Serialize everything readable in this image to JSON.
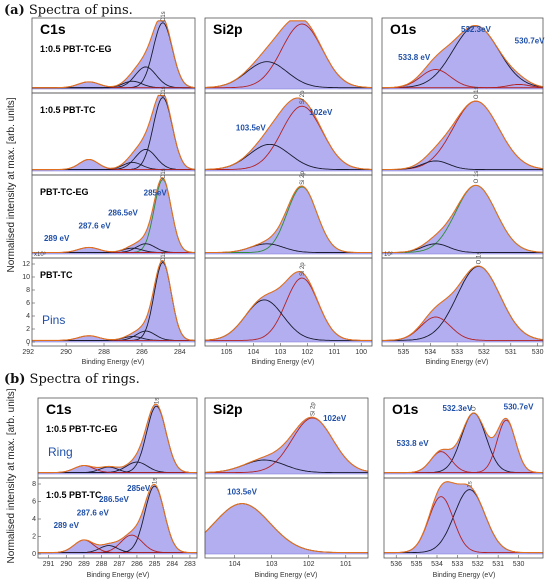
{
  "captions": {
    "a_letter": "(a)",
    "a_text": " Spectra of pins.",
    "b_letter": "(b)",
    "b_text": " Spectra of rings."
  },
  "ylabel": "Normalised intensity at max. [arb. units]",
  "xlabel": "Binding Energy (eV)",
  "pins_label": "Pins",
  "ring_label": "Ring",
  "scale_markers": {
    "c1s": "x10³",
    "o1s": "10²"
  },
  "colors": {
    "fill": "#b3aef0",
    "fill_stroke": "#7a74d6",
    "envelope": "#e0701e",
    "component_dark": "#1a1a2e",
    "component_red": "#b22222",
    "component_green": "#2e8b3a",
    "label_blue": "#1f4fa8"
  },
  "chart_data": [
    {
      "id": "pins-c1s-1",
      "type": "area",
      "panel_title": "C1s",
      "sample": "1:0.5 PBT-TC-EG",
      "peak_marker": "C1s",
      "xlim": [
        291.8,
        283.2
      ],
      "reversed_x": true,
      "components": [
        {
          "center": 284.9,
          "amp": 1.0,
          "width": 0.5,
          "color": "dark"
        },
        {
          "center": 285.8,
          "amp": 0.32,
          "width": 0.55,
          "color": "dark"
        },
        {
          "center": 286.5,
          "amp": 0.1,
          "width": 0.5,
          "color": "dark"
        },
        {
          "center": 288.8,
          "amp": 0.09,
          "width": 0.55,
          "color": "red"
        }
      ],
      "peak_labels": []
    },
    {
      "id": "pins-si2p-1",
      "type": "area",
      "panel_title": "Si2p",
      "xlim": [
        105.8,
        99.6
      ],
      "reversed_x": true,
      "components": [
        {
          "center": 102.2,
          "amp": 0.98,
          "width": 0.75,
          "color": "red"
        },
        {
          "center": 103.5,
          "amp": 0.4,
          "width": 0.75,
          "color": "dark"
        }
      ],
      "peak_labels": []
    },
    {
      "id": "pins-o1s-1",
      "type": "area",
      "panel_title": "O1s",
      "xlim": [
        535.8,
        529.8
      ],
      "reversed_x": true,
      "components": [
        {
          "center": 532.3,
          "amp": 0.95,
          "width": 0.85,
          "color": "dark"
        },
        {
          "center": 533.8,
          "amp": 0.28,
          "width": 0.55,
          "color": "red"
        },
        {
          "center": 530.7,
          "amp": 0.05,
          "width": 0.4,
          "color": "red"
        }
      ],
      "peak_labels": [
        {
          "text": "532.3eV",
          "x": 532.3,
          "y": 0.88
        },
        {
          "text": "533.8 eV",
          "x": 534.6,
          "y": 0.45
        },
        {
          "text": "530.7eV",
          "x": 530.3,
          "y": 0.7
        }
      ]
    },
    {
      "id": "pins-c1s-2",
      "type": "area",
      "sample": "1:0.5 PBT-TC",
      "peak_marker": "C1s",
      "xlim": [
        291.8,
        283.2
      ],
      "reversed_x": true,
      "components": [
        {
          "center": 284.9,
          "amp": 1.0,
          "width": 0.5,
          "color": "dark"
        },
        {
          "center": 285.8,
          "amp": 0.28,
          "width": 0.55,
          "color": "dark"
        },
        {
          "center": 286.5,
          "amp": 0.1,
          "width": 0.5,
          "color": "dark"
        },
        {
          "center": 288.8,
          "amp": 0.14,
          "width": 0.5,
          "color": "red"
        }
      ],
      "peak_labels": []
    },
    {
      "id": "pins-si2p-2",
      "type": "area",
      "peak_marker": "Si 2p",
      "xlim": [
        105.8,
        99.6
      ],
      "reversed_x": true,
      "components": [
        {
          "center": 102.2,
          "amp": 0.88,
          "width": 0.75,
          "color": "red"
        },
        {
          "center": 103.4,
          "amp": 0.35,
          "width": 0.75,
          "color": "dark"
        }
      ],
      "peak_labels": [
        {
          "text": "103.5eV",
          "x": 104.1,
          "y": 0.56
        },
        {
          "text": "102eV",
          "x": 101.5,
          "y": 0.78
        }
      ]
    },
    {
      "id": "pins-o1s-2",
      "type": "area",
      "peak_marker": "O 1s",
      "xlim": [
        535.8,
        529.8
      ],
      "reversed_x": true,
      "components": [
        {
          "center": 532.3,
          "amp": 0.95,
          "width": 0.85,
          "color": "red"
        },
        {
          "center": 533.8,
          "amp": 0.12,
          "width": 0.5,
          "color": "dark"
        }
      ],
      "peak_labels": []
    },
    {
      "id": "pins-c1s-3",
      "type": "area",
      "sample": "PBT-TC-EG",
      "peak_marker": "C1s",
      "scale_marker": "c1s",
      "xlim": [
        291.8,
        283.2
      ],
      "reversed_x": true,
      "components": [
        {
          "center": 284.9,
          "amp": 1.0,
          "width": 0.45,
          "color": "green"
        },
        {
          "center": 285.8,
          "amp": 0.12,
          "width": 0.5,
          "color": "dark"
        },
        {
          "center": 286.5,
          "amp": 0.06,
          "width": 0.5,
          "color": "dark"
        },
        {
          "center": 288.8,
          "amp": 0.07,
          "width": 0.55,
          "color": "red"
        }
      ],
      "peak_labels": [
        {
          "text": "285eV",
          "x": 285.3,
          "y": 0.8
        },
        {
          "text": "286.5eV",
          "x": 287.0,
          "y": 0.53
        },
        {
          "text": "287.6 eV",
          "x": 288.5,
          "y": 0.35
        },
        {
          "text": "289 eV",
          "x": 290.5,
          "y": 0.18
        }
      ]
    },
    {
      "id": "pins-si2p-3",
      "type": "area",
      "peak_marker": "Si 2p",
      "xlim": [
        105.8,
        99.6
      ],
      "reversed_x": true,
      "components": [
        {
          "center": 102.2,
          "amp": 0.9,
          "width": 0.55,
          "color": "green"
        },
        {
          "center": 103.5,
          "amp": 0.12,
          "width": 0.6,
          "color": "dark"
        }
      ],
      "peak_labels": []
    },
    {
      "id": "pins-o1s-3",
      "type": "area",
      "peak_marker": "O 1s",
      "scale_marker": "o1s",
      "xlim": [
        535.8,
        529.8
      ],
      "reversed_x": true,
      "components": [
        {
          "center": 532.3,
          "amp": 0.92,
          "width": 0.75,
          "color": "green"
        },
        {
          "center": 533.8,
          "amp": 0.12,
          "width": 0.5,
          "color": "dark"
        }
      ],
      "peak_labels": []
    },
    {
      "id": "pins-c1s-4",
      "type": "area",
      "sample": "PBT-TC",
      "side_label": "pins",
      "peak_marker": "C1s",
      "xlim": [
        291.8,
        283.2
      ],
      "reversed_x": true,
      "x_ticks": [
        292,
        290,
        288,
        286,
        284
      ],
      "y_ticks": [
        0,
        2,
        4,
        6,
        8,
        10,
        12
      ],
      "show_y_ticks": true,
      "components": [
        {
          "center": 284.9,
          "amp": 1.0,
          "width": 0.45,
          "color": "dark"
        },
        {
          "center": 285.8,
          "amp": 0.12,
          "width": 0.5,
          "color": "dark"
        },
        {
          "center": 286.5,
          "amp": 0.05,
          "width": 0.5,
          "color": "dark"
        },
        {
          "center": 288.8,
          "amp": 0.06,
          "width": 0.55,
          "color": "red"
        }
      ],
      "peak_labels": []
    },
    {
      "id": "pins-si2p-4",
      "type": "area",
      "peak_marker": "Si 2p",
      "xlim": [
        105.8,
        99.6
      ],
      "reversed_x": true,
      "x_ticks": [
        105,
        104,
        103,
        102,
        101,
        100
      ],
      "components": [
        {
          "center": 102.2,
          "amp": 0.8,
          "width": 0.6,
          "color": "red"
        },
        {
          "center": 103.6,
          "amp": 0.52,
          "width": 0.7,
          "color": "dark"
        }
      ],
      "peak_labels": []
    },
    {
      "id": "pins-o1s-4",
      "type": "area",
      "peak_marker": "O 1s",
      "xlim": [
        535.8,
        529.8
      ],
      "reversed_x": true,
      "x_ticks": [
        535,
        534,
        533,
        532,
        531,
        530
      ],
      "components": [
        {
          "center": 532.2,
          "amp": 0.95,
          "width": 0.8,
          "color": "dark"
        },
        {
          "center": 533.8,
          "amp": 0.3,
          "width": 0.55,
          "color": "red"
        }
      ],
      "peak_labels": []
    },
    {
      "id": "rings-c1s-1",
      "type": "area",
      "panel_title": "C1s",
      "sample": "1:0.5 PBT-TC-EG",
      "side_label": "ring",
      "peak_marker": "1s",
      "xlim": [
        291.6,
        282.6
      ],
      "reversed_x": true,
      "components": [
        {
          "center": 284.9,
          "amp": 0.95,
          "width": 0.55,
          "color": "dark"
        },
        {
          "center": 286.0,
          "amp": 0.15,
          "width": 0.6,
          "color": "dark"
        },
        {
          "center": 287.6,
          "amp": 0.08,
          "width": 0.5,
          "color": "dark"
        },
        {
          "center": 289.0,
          "amp": 0.1,
          "width": 0.55,
          "color": "red"
        }
      ],
      "peak_labels": []
    },
    {
      "id": "rings-si2p-1",
      "type": "area",
      "panel_title": "Si2p",
      "peak_marker": "Si 2p",
      "xlim": [
        104.8,
        100.4
      ],
      "reversed_x": true,
      "components": [
        {
          "center": 101.9,
          "amp": 0.78,
          "width": 0.55,
          "color": "red"
        },
        {
          "center": 103.2,
          "amp": 0.18,
          "width": 0.55,
          "color": "dark"
        }
      ],
      "peak_labels": [
        {
          "text": "102eV",
          "x": 101.3,
          "y": 0.76
        }
      ]
    },
    {
      "id": "rings-o1s-1",
      "type": "area",
      "panel_title": "O1s",
      "peak_marker": "O",
      "xlim": [
        536.6,
        528.8
      ],
      "reversed_x": true,
      "components": [
        {
          "center": 532.2,
          "amp": 0.85,
          "width": 0.6,
          "color": "dark"
        },
        {
          "center": 530.6,
          "amp": 0.75,
          "width": 0.45,
          "color": "red"
        },
        {
          "center": 533.8,
          "amp": 0.3,
          "width": 0.5,
          "color": "red"
        }
      ],
      "peak_labels": [
        {
          "text": "532.3eV",
          "x": 533.0,
          "y": 0.9
        },
        {
          "text": "530.7eV",
          "x": 530.0,
          "y": 0.92
        },
        {
          "text": "533.8 eV",
          "x": 535.2,
          "y": 0.4
        }
      ]
    },
    {
      "id": "rings-c1s-2",
      "type": "area",
      "sample": "1:0.5 PBT-TC",
      "peak_marker": "1s",
      "xlim": [
        291.6,
        282.6
      ],
      "reversed_x": true,
      "x_ticks": [
        291,
        290,
        289,
        288,
        287,
        286,
        285,
        284,
        283
      ],
      "y_ticks": [
        0,
        2,
        4,
        6,
        8
      ],
      "show_y_ticks": true,
      "components": [
        {
          "center": 285.0,
          "amp": 0.95,
          "width": 0.55,
          "color": "dark"
        },
        {
          "center": 286.3,
          "amp": 0.25,
          "width": 0.6,
          "color": "red"
        },
        {
          "center": 287.6,
          "amp": 0.1,
          "width": 0.5,
          "color": "dark"
        },
        {
          "center": 289.0,
          "amp": 0.18,
          "width": 0.55,
          "color": "red"
        }
      ],
      "peak_labels": [
        {
          "text": "285eV",
          "x": 285.9,
          "y": 0.9
        },
        {
          "text": "286.5eV",
          "x": 287.3,
          "y": 0.74
        },
        {
          "text": "287.6 eV",
          "x": 288.5,
          "y": 0.55
        },
        {
          "text": "289 eV",
          "x": 290.0,
          "y": 0.37
        }
      ]
    },
    {
      "id": "rings-si2p-2",
      "type": "area",
      "xlim": [
        104.8,
        100.4
      ],
      "reversed_x": true,
      "x_ticks": [
        104,
        103,
        102,
        101
      ],
      "components": [
        {
          "center": 103.8,
          "amp": 0.7,
          "width": 0.75,
          "color": "dark"
        }
      ],
      "peak_labels": [
        {
          "text": "103.5eV",
          "x": 103.8,
          "y": 0.85
        }
      ]
    },
    {
      "id": "rings-o1s-2",
      "type": "area",
      "peak_marker": "1s",
      "xlim": [
        536.6,
        528.8
      ],
      "reversed_x": true,
      "x_ticks": [
        536,
        535,
        534,
        533,
        532,
        531,
        530
      ],
      "components": [
        {
          "center": 532.4,
          "amp": 0.9,
          "width": 0.75,
          "color": "dark"
        },
        {
          "center": 533.8,
          "amp": 0.8,
          "width": 0.6,
          "color": "red"
        }
      ],
      "peak_labels": []
    }
  ]
}
